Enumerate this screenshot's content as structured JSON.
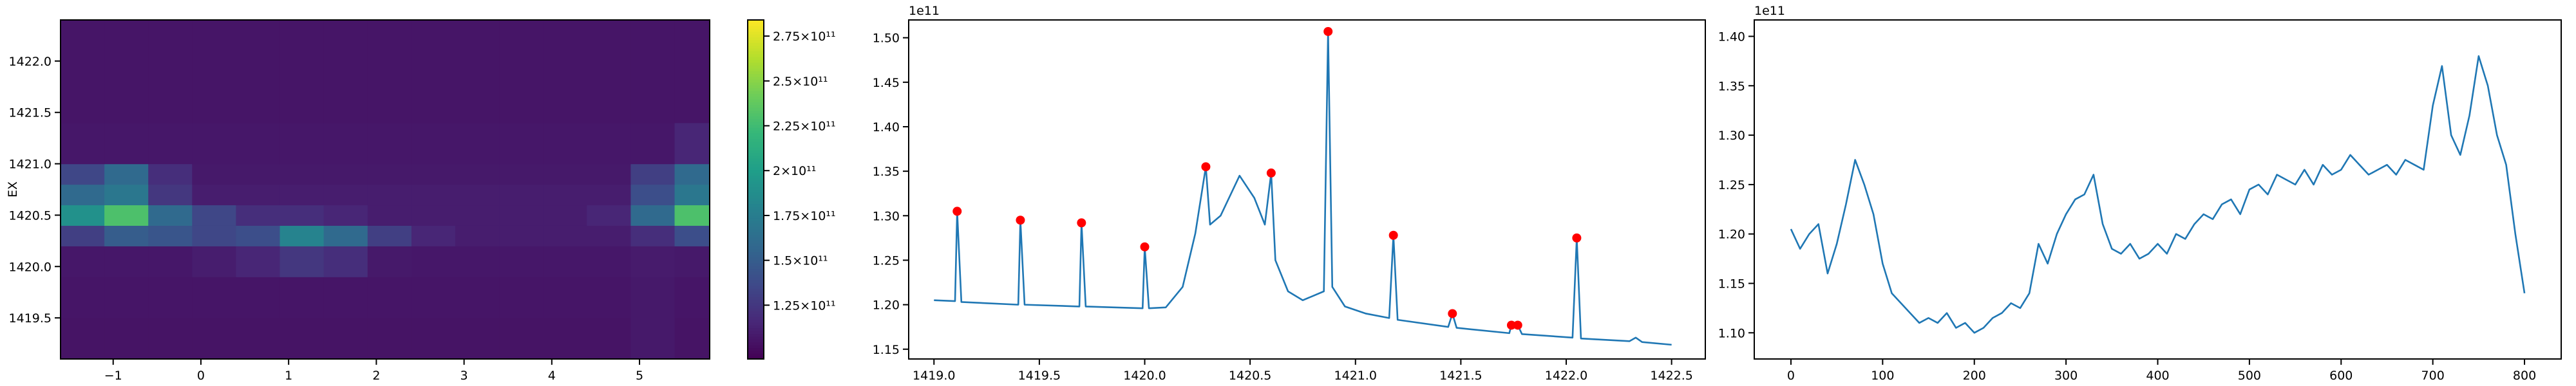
{
  "chart_data": [
    {
      "type": "heatmap",
      "ylabel": "EX",
      "colormap": "viridis",
      "x_edges": [
        -1.6,
        -1.1,
        -0.6,
        -0.1,
        0.4,
        0.9,
        1.4,
        1.9,
        2.4,
        2.9,
        3.4,
        3.9,
        4.4,
        4.9,
        5.4,
        5.8
      ],
      "y_edges": [
        1419.1,
        1419.5,
        1419.9,
        1420.2,
        1420.4,
        1420.6,
        1420.8,
        1421.0,
        1421.4,
        1421.8,
        1422.4
      ],
      "z": [
        [
          105000000000.0,
          105000000000.0,
          105000000000.0,
          105000000000.0,
          105000000000.0,
          105000000000.0,
          105000000000.0,
          105000000000.0,
          105000000000.0,
          105000000000.0,
          105000000000.0,
          105000000000.0,
          105000000000.0,
          108000000000.0,
          105000000000.0
        ],
        [
          106000000000.0,
          106000000000.0,
          106000000000.0,
          106000000000.0,
          106000000000.0,
          106000000000.0,
          106000000000.0,
          106000000000.0,
          106000000000.0,
          106000000000.0,
          106000000000.0,
          106000000000.0,
          106000000000.0,
          108000000000.0,
          106000000000.0
        ],
        [
          107000000000.0,
          107000000000.0,
          107000000000.0,
          110000000000.0,
          115000000000.0,
          125000000000.0,
          120000000000.0,
          108000000000.0,
          107000000000.0,
          107000000000.0,
          107000000000.0,
          107000000000.0,
          107000000000.0,
          109000000000.0,
          108000000000.0
        ],
        [
          130000000000.0,
          150000000000.0,
          145000000000.0,
          135000000000.0,
          140000000000.0,
          180000000000.0,
          160000000000.0,
          130000000000.0,
          115000000000.0,
          110000000000.0,
          110000000000.0,
          110000000000.0,
          110000000000.0,
          120000000000.0,
          140000000000.0
        ],
        [
          190000000000.0,
          230000000000.0,
          160000000000.0,
          135000000000.0,
          120000000000.0,
          120000000000.0,
          115000000000.0,
          110000000000.0,
          110000000000.0,
          110000000000.0,
          110000000000.0,
          110000000000.0,
          115000000000.0,
          160000000000.0,
          230000000000.0
        ],
        [
          160000000000.0,
          170000000000.0,
          125000000000.0,
          110000000000.0,
          110000000000.0,
          110000000000.0,
          110000000000.0,
          110000000000.0,
          110000000000.0,
          110000000000.0,
          110000000000.0,
          110000000000.0,
          110000000000.0,
          140000000000.0,
          170000000000.0
        ],
        [
          135000000000.0,
          160000000000.0,
          120000000000.0,
          108000000000.0,
          108000000000.0,
          108000000000.0,
          108000000000.0,
          108000000000.0,
          108000000000.0,
          108000000000.0,
          108000000000.0,
          108000000000.0,
          108000000000.0,
          130000000000.0,
          160000000000.0
        ],
        [
          107000000000.0,
          107000000000.0,
          107000000000.0,
          107000000000.0,
          107000000000.0,
          107000000000.0,
          107000000000.0,
          107000000000.0,
          107000000000.0,
          107000000000.0,
          107000000000.0,
          107000000000.0,
          107000000000.0,
          107000000000.0,
          115000000000.0
        ],
        [
          106000000000.0,
          106000000000.0,
          106000000000.0,
          106000000000.0,
          106000000000.0,
          106000000000.0,
          106000000000.0,
          106000000000.0,
          106000000000.0,
          106000000000.0,
          106000000000.0,
          106000000000.0,
          106000000000.0,
          106000000000.0,
          106000000000.0
        ],
        [
          106000000000.0,
          106000000000.0,
          106000000000.0,
          106000000000.0,
          106000000000.0,
          106000000000.0,
          106000000000.0,
          106000000000.0,
          106000000000.0,
          106000000000.0,
          106000000000.0,
          106000000000.0,
          106000000000.0,
          106000000000.0,
          106000000000.0
        ]
      ],
      "xlim": [
        -1.6,
        5.8
      ],
      "ylim": [
        1419.1,
        1422.4
      ],
      "xticks": [
        {
          "value": -1,
          "label": "−1"
        },
        0,
        1,
        2,
        3,
        4,
        5
      ],
      "yticks": [
        1419.5,
        {
          "value": 1420,
          "label": "1420.0"
        },
        1420.5,
        {
          "value": 1421,
          "label": "1421.0"
        },
        1421.5,
        {
          "value": 1422,
          "label": "1422.0"
        }
      ],
      "clim": [
        95000000000.0,
        284000000000.0
      ],
      "cticks": [
        {
          "value": 125000000000.0,
          "label": "1.25×10¹¹"
        },
        {
          "value": 150000000000.0,
          "label": "1.5×10¹¹"
        },
        {
          "value": 175000000000.0,
          "label": "1.75×10¹¹"
        },
        {
          "value": 200000000000.0,
          "label": "2×10¹¹"
        },
        {
          "value": 225000000000.0,
          "label": "2.25×10¹¹"
        },
        {
          "value": 250000000000.0,
          "label": "2.5×10¹¹"
        },
        {
          "value": 275000000000.0,
          "label": "2.75×10¹¹"
        }
      ]
    },
    {
      "type": "line",
      "offset_text": "1e11",
      "color": "#1f77b4",
      "x": [
        1419.0,
        1419.1,
        1419.11,
        1419.13,
        1419.4,
        1419.41,
        1419.43,
        1419.69,
        1419.7,
        1419.72,
        1419.99,
        1420.0,
        1420.02,
        1420.1,
        1420.18,
        1420.24,
        1420.29,
        1420.31,
        1420.36,
        1420.45,
        1420.52,
        1420.57,
        1420.6,
        1420.62,
        1420.68,
        1420.75,
        1420.8,
        1420.85,
        1420.87,
        1420.89,
        1420.95,
        1421.05,
        1421.16,
        1421.18,
        1421.2,
        1421.44,
        1421.46,
        1421.48,
        1421.73,
        1421.74,
        1421.77,
        1421.79,
        1422.03,
        1422.05,
        1422.07,
        1422.3,
        1422.33,
        1422.36,
        1422.5
      ],
      "values": [
        1.205,
        1.204,
        1.305,
        1.203,
        1.2,
        1.295,
        1.2,
        1.198,
        1.292,
        1.198,
        1.196,
        1.265,
        1.196,
        1.197,
        1.22,
        1.28,
        1.355,
        1.29,
        1.3,
        1.345,
        1.32,
        1.29,
        1.348,
        1.25,
        1.215,
        1.205,
        1.21,
        1.215,
        1.507,
        1.22,
        1.198,
        1.19,
        1.185,
        1.278,
        1.183,
        1.175,
        1.19,
        1.174,
        1.168,
        1.177,
        1.177,
        1.167,
        1.163,
        1.275,
        1.162,
        1.159,
        1.163,
        1.158,
        1.155
      ],
      "markers": {
        "color": "red",
        "x": [
          1419.11,
          1419.41,
          1419.7,
          1420.0,
          1420.29,
          1420.6,
          1420.87,
          1421.18,
          1421.46,
          1421.74,
          1421.77,
          1422.05
        ],
        "values": [
          1.305,
          1.295,
          1.292,
          1.265,
          1.355,
          1.348,
          1.507,
          1.278,
          1.19,
          1.177,
          1.177,
          1.275
        ]
      },
      "xlim": [
        1418.88,
        1422.66
      ],
      "ylim": [
        1.139,
        1.52
      ],
      "xticks": [
        {
          "value": 1419,
          "label": "1419.0"
        },
        1419.5,
        {
          "value": 1420,
          "label": "1420.0"
        },
        1420.5,
        {
          "value": 1421,
          "label": "1421.0"
        },
        1421.5,
        {
          "value": 1422,
          "label": "1422.0"
        },
        1422.5
      ],
      "yticks": [
        1.15,
        {
          "value": 1.2,
          "label": "1.20"
        },
        1.25,
        {
          "value": 1.3,
          "label": "1.30"
        },
        1.35,
        {
          "value": 1.4,
          "label": "1.40"
        },
        1.45,
        {
          "value": 1.5,
          "label": "1.50"
        }
      ]
    },
    {
      "type": "line",
      "offset_text": "1e11",
      "color": "#1f77b4",
      "x": [
        0,
        10,
        20,
        30,
        40,
        50,
        60,
        70,
        80,
        90,
        100,
        110,
        120,
        130,
        140,
        150,
        160,
        170,
        180,
        190,
        200,
        210,
        220,
        230,
        240,
        250,
        260,
        270,
        280,
        290,
        300,
        310,
        320,
        330,
        340,
        350,
        360,
        370,
        380,
        390,
        400,
        410,
        420,
        430,
        440,
        450,
        460,
        470,
        480,
        490,
        500,
        510,
        520,
        530,
        540,
        550,
        560,
        570,
        580,
        590,
        600,
        610,
        620,
        630,
        640,
        650,
        660,
        670,
        680,
        690,
        700,
        710,
        720,
        730,
        740,
        750,
        760,
        770,
        780,
        790,
        800
      ],
      "values": [
        1.205,
        1.185,
        1.2,
        1.21,
        1.16,
        1.19,
        1.23,
        1.275,
        1.25,
        1.22,
        1.17,
        1.14,
        1.13,
        1.12,
        1.11,
        1.115,
        1.11,
        1.12,
        1.105,
        1.11,
        1.1,
        1.105,
        1.115,
        1.12,
        1.13,
        1.125,
        1.14,
        1.19,
        1.17,
        1.2,
        1.22,
        1.235,
        1.24,
        1.26,
        1.21,
        1.185,
        1.18,
        1.19,
        1.175,
        1.18,
        1.19,
        1.18,
        1.2,
        1.195,
        1.21,
        1.22,
        1.215,
        1.23,
        1.235,
        1.22,
        1.245,
        1.25,
        1.24,
        1.26,
        1.255,
        1.25,
        1.265,
        1.25,
        1.27,
        1.26,
        1.265,
        1.28,
        1.27,
        1.26,
        1.265,
        1.27,
        1.26,
        1.275,
        1.27,
        1.265,
        1.33,
        1.37,
        1.3,
        1.28,
        1.32,
        1.38,
        1.35,
        1.3,
        1.27,
        1.2,
        1.14
      ],
      "xlim": [
        -40,
        840
      ],
      "ylim": [
        1.0735,
        1.4166
      ],
      "xticks": [
        0,
        100,
        200,
        300,
        400,
        500,
        600,
        700,
        800
      ],
      "yticks": [
        {
          "value": 1.1,
          "label": "1.10"
        },
        1.15,
        {
          "value": 1.2,
          "label": "1.20"
        },
        1.25,
        {
          "value": 1.3,
          "label": "1.30"
        },
        1.35,
        {
          "value": 1.4,
          "label": "1.40"
        }
      ]
    }
  ]
}
